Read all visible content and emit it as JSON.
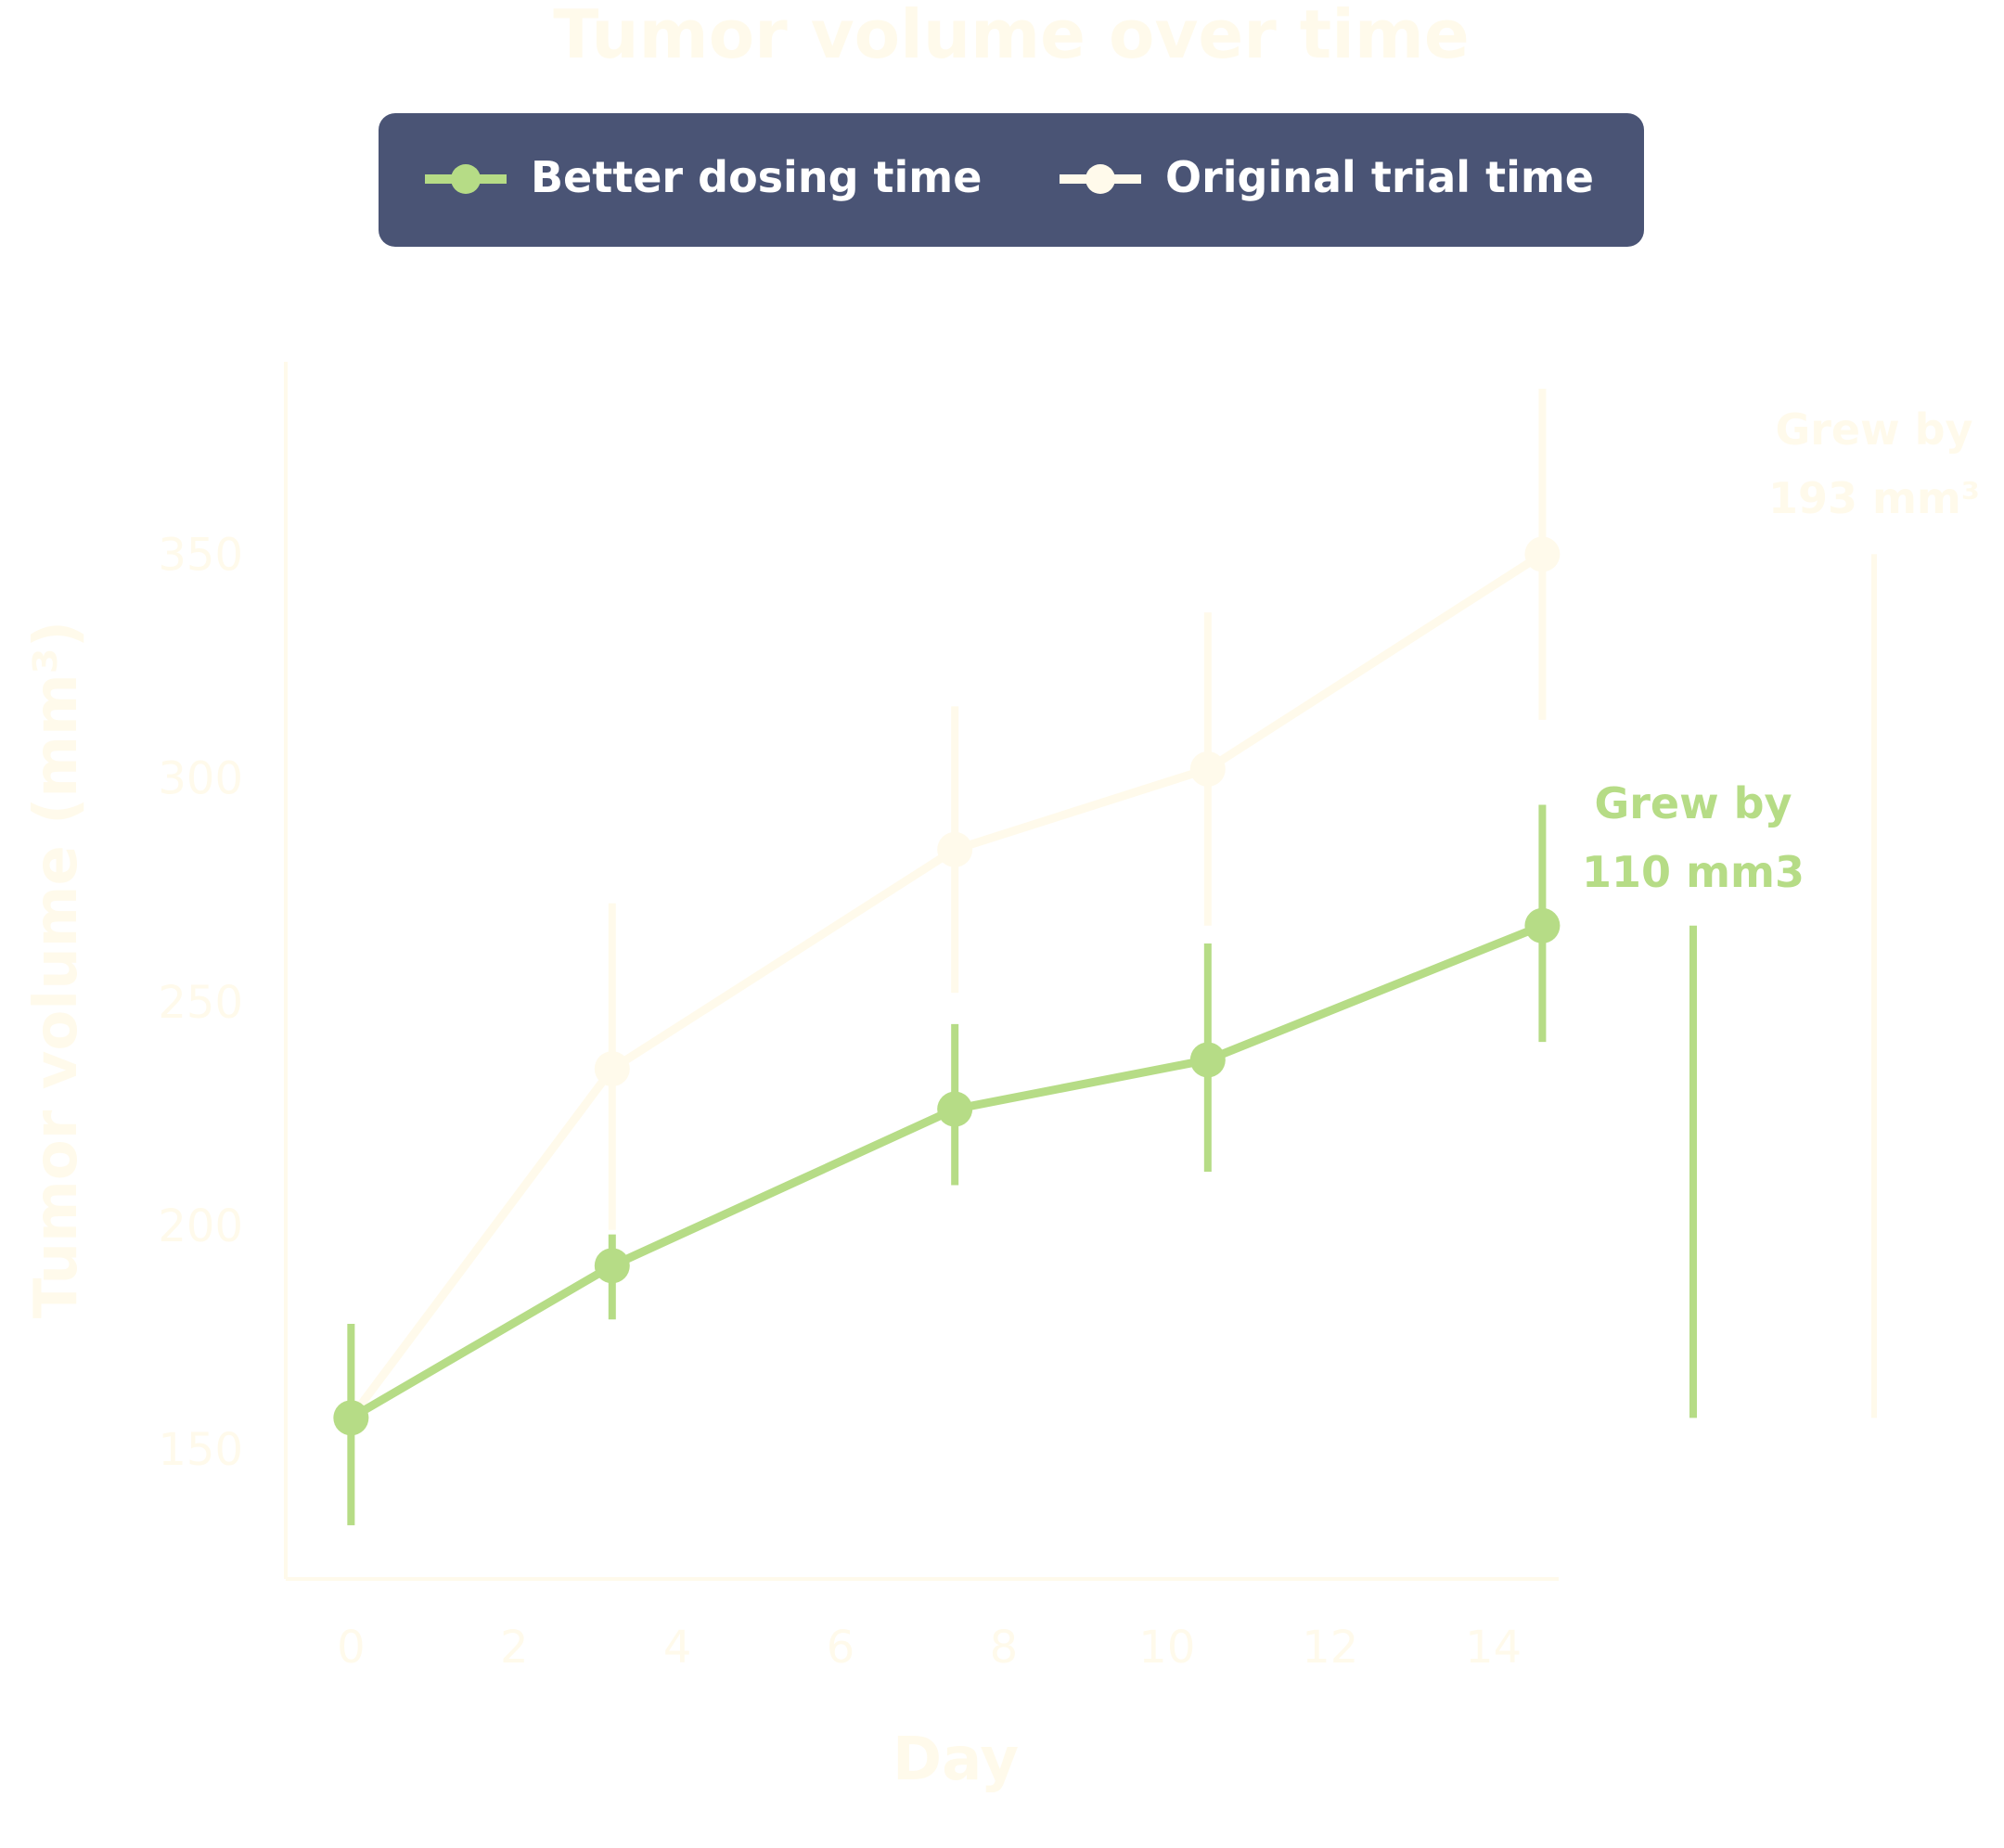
{
  "chart_data": {
    "type": "line",
    "title": "Tumor volume over time",
    "xlabel": "Day",
    "ylabel": "Tumor volume (mm³)",
    "xlim": [
      -0.8,
      14.8
    ],
    "ylim": [
      121,
      393
    ],
    "xticks": [
      "0",
      "2",
      "4",
      "6",
      "8",
      "10",
      "12",
      "14"
    ],
    "yticks": [
      "150",
      "200",
      "250",
      "300",
      "350"
    ],
    "grid": false,
    "legend": "top-center",
    "series": [
      {
        "name": "Better dosing time",
        "color": "#b6dc86",
        "x": [
          0,
          3.2,
          7.4,
          10.5,
          14.6
        ],
        "y": [
          157,
          191,
          226,
          237,
          267
        ],
        "err_low": [
          133,
          179,
          209,
          212,
          241
        ],
        "err_high": [
          178,
          198,
          245,
          263,
          294
        ]
      },
      {
        "name": "Original trial time",
        "color": "#fffaeb",
        "x": [
          0,
          3.2,
          7.4,
          10.5,
          14.6
        ],
        "y": [
          157,
          235,
          284,
          302,
          350
        ],
        "err_low": [
          133,
          199,
          252,
          267,
          313
        ],
        "err_high": [
          178,
          272,
          316,
          337,
          387
        ]
      }
    ],
    "annotations": [
      {
        "text_line1": "Grew by",
        "text_line2": "110 mm3",
        "series": "Better dosing time",
        "from": 157,
        "to": 267
      },
      {
        "text_line1": "Grew by",
        "text_line2": "193 mm³",
        "series": "Original trial time",
        "from": 157,
        "to": 350
      }
    ],
    "colors": {
      "legend_bg": "#4a5475",
      "legend_text": "#ffffff",
      "axis": "#fffaeb",
      "text_faint": "#fffaeb"
    }
  }
}
